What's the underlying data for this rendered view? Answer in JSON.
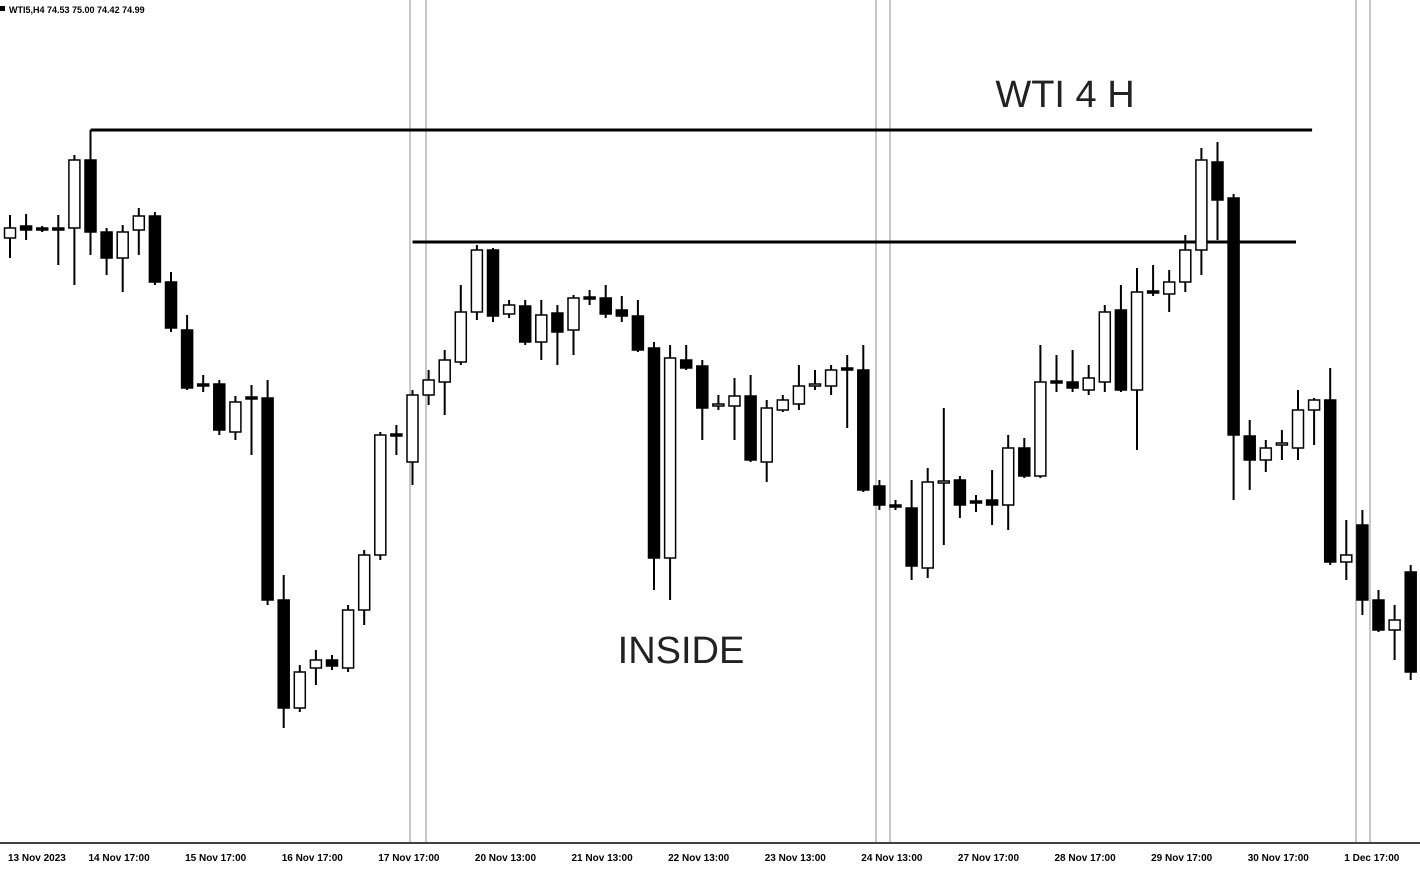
{
  "chart_data": {
    "type": "candlestick",
    "header": "WTI5,H4 74.53 75.00 74.42 74.99",
    "title": "WTI 4 H",
    "annotation": "INSIDE",
    "up_color": "#ffffff",
    "down_color": "#000000",
    "ylim": [
      73.3,
      81.7
    ],
    "levels": [
      80.4,
      79.28
    ],
    "categories": [
      "13 Nov 2023",
      null,
      null,
      null,
      null,
      "14 Nov 17:00",
      null,
      null,
      null,
      null,
      null,
      "15 Nov 17:00",
      null,
      null,
      null,
      null,
      null,
      "16 Nov 17:00",
      null,
      null,
      null,
      null,
      null,
      "17 Nov 17:00",
      null,
      null,
      null,
      null,
      null,
      "20 Nov 13:00",
      null,
      null,
      null,
      null,
      null,
      "21 Nov 13:00",
      null,
      null,
      null,
      null,
      null,
      "22 Nov 13:00",
      null,
      null,
      null,
      null,
      null,
      "23 Nov 13:00",
      null,
      null,
      null,
      null,
      null,
      "24 Nov 13:00",
      null,
      null,
      null,
      null,
      null,
      "27 Nov 17:00",
      null,
      null,
      null,
      null,
      null,
      "28 Nov 17:00",
      null,
      null,
      null,
      null,
      null,
      "29 Nov 17:00",
      null,
      null,
      null,
      null,
      null,
      "30 Nov 17:00",
      null,
      null,
      null,
      null,
      null,
      "1 Dec 17:00",
      null,
      null,
      null,
      null
    ],
    "open": [
      79.32,
      79.44,
      79.42,
      79.42,
      79.42,
      80.1,
      79.38,
      79.12,
      79.4,
      79.54,
      78.88,
      78.4,
      77.86,
      77.86,
      77.38,
      77.73,
      77.72,
      75.7,
      74.62,
      75.02,
      75.1,
      75.02,
      75.6,
      76.15,
      77.36,
      77.08,
      77.75,
      77.88,
      78.08,
      78.58,
      79.2,
      78.56,
      78.64,
      78.28,
      78.57,
      78.4,
      78.73,
      78.72,
      78.6,
      78.54,
      78.22,
      76.12,
      78.1,
      78.04,
      77.64,
      77.64,
      77.74,
      77.08,
      77.6,
      77.66,
      77.85,
      77.84,
      78.02,
      78.0,
      76.84,
      76.65,
      76.62,
      76.02,
      76.87,
      76.9,
      76.69,
      76.7,
      76.65,
      77.22,
      76.94,
      77.89,
      77.88,
      77.8,
      77.88,
      78.6,
      77.8,
      78.79,
      78.76,
      78.88,
      79.2,
      80.08,
      79.72,
      77.34,
      77.1,
      77.25,
      77.22,
      77.6,
      77.7,
      76.08,
      76.45,
      75.7,
      75.4,
      75.98
    ],
    "high": [
      79.55,
      79.56,
      79.44,
      79.55,
      80.15,
      80.4,
      79.42,
      79.45,
      79.62,
      79.58,
      78.98,
      78.55,
      77.95,
      77.9,
      77.74,
      77.85,
      77.9,
      75.95,
      75.05,
      75.2,
      75.15,
      75.65,
      76.2,
      77.38,
      77.45,
      77.8,
      78.0,
      78.2,
      78.85,
      79.25,
      79.22,
      78.7,
      78.7,
      78.7,
      78.65,
      78.75,
      78.8,
      78.85,
      78.74,
      78.7,
      78.28,
      78.25,
      78.25,
      78.1,
      77.75,
      77.92,
      77.95,
      77.7,
      77.75,
      78.05,
      78.0,
      78.05,
      78.15,
      78.25,
      76.9,
      76.7,
      76.9,
      77.02,
      77.62,
      76.94,
      76.75,
      77.0,
      77.35,
      77.32,
      78.25,
      78.15,
      78.2,
      78.05,
      78.65,
      78.85,
      79.02,
      79.05,
      79.0,
      79.35,
      80.22,
      80.28,
      79.76,
      77.5,
      77.3,
      77.4,
      77.8,
      77.72,
      78.02,
      76.5,
      76.6,
      75.8,
      75.65,
      76.05
    ],
    "low": [
      79.12,
      79.3,
      79.38,
      79.05,
      78.85,
      79.15,
      78.95,
      78.78,
      79.15,
      78.85,
      78.38,
      77.8,
      77.78,
      77.35,
      77.3,
      77.15,
      75.65,
      74.42,
      74.58,
      74.85,
      75.0,
      74.98,
      75.45,
      76.1,
      77.15,
      76.85,
      77.65,
      77.55,
      78.05,
      78.5,
      78.48,
      78.52,
      78.25,
      78.1,
      78.05,
      78.15,
      78.65,
      78.52,
      78.48,
      78.18,
      75.8,
      75.7,
      78.0,
      77.3,
      77.6,
      77.3,
      77.08,
      76.88,
      77.58,
      77.6,
      77.8,
      77.75,
      77.42,
      76.78,
      76.6,
      76.6,
      75.9,
      75.92,
      76.25,
      76.52,
      76.58,
      76.45,
      76.4,
      76.92,
      76.92,
      77.78,
      77.78,
      77.75,
      77.78,
      77.78,
      77.2,
      78.74,
      78.58,
      78.78,
      78.95,
      79.3,
      76.7,
      76.8,
      76.98,
      77.1,
      77.1,
      77.25,
      76.05,
      75.9,
      75.55,
      75.38,
      75.1,
      74.9
    ],
    "close": [
      79.42,
      79.4,
      79.41,
      79.41,
      80.1,
      79.38,
      79.12,
      79.38,
      79.54,
      78.88,
      78.42,
      77.82,
      77.85,
      77.4,
      77.68,
      77.72,
      75.7,
      74.62,
      74.98,
      75.1,
      75.04,
      75.6,
      76.15,
      77.35,
      77.34,
      77.75,
      77.9,
      78.1,
      78.58,
      79.2,
      78.54,
      78.65,
      78.28,
      78.55,
      78.38,
      78.72,
      78.71,
      78.56,
      78.54,
      78.2,
      76.12,
      78.12,
      78.02,
      77.62,
      77.66,
      77.74,
      77.1,
      77.62,
      77.7,
      77.84,
      77.86,
      78.0,
      78.0,
      76.8,
      76.65,
      76.63,
      76.04,
      76.88,
      76.89,
      76.65,
      76.67,
      76.65,
      77.22,
      76.94,
      77.88,
      77.87,
      77.82,
      77.92,
      78.58,
      77.8,
      78.78,
      78.77,
      78.88,
      79.2,
      80.1,
      79.7,
      77.35,
      77.1,
      77.22,
      77.27,
      77.6,
      77.7,
      76.08,
      76.15,
      75.7,
      75.4,
      75.5,
      74.98
    ]
  }
}
